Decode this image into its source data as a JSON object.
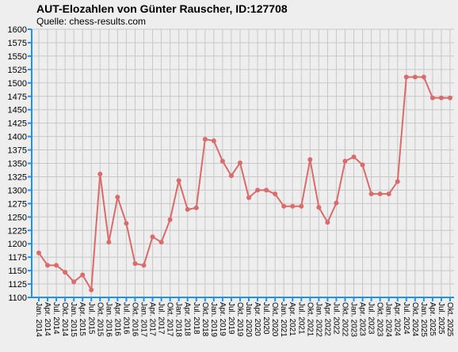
{
  "chart_data": {
    "type": "line",
    "title": "AUT-Elozahlen von Günter Rauscher, ID:127708",
    "subtitle": "Quelle: chess-results.com",
    "categories": [
      "Jan. 2014",
      "Apr. 2014",
      "Jul. 2014",
      "Okt. 2014",
      "Jan. 2015",
      "Apr. 2015",
      "Jul. 2015",
      "Okt. 2015",
      "Jan. 2016",
      "Apr. 2016",
      "Jul. 2016",
      "Okt. 2016",
      "Jan. 2017",
      "Apr. 2017",
      "Jul. 2017",
      "Okt. 2017",
      "Jan. 2018",
      "Apr. 2018",
      "Jul. 2018",
      "Okt. 2018",
      "Jan. 2019",
      "Apr. 2019",
      "Jul. 2019",
      "Okt. 2019",
      "Jan. 2020",
      "Apr. 2020",
      "Jul. 2020",
      "Okt. 2020",
      "Jan. 2021",
      "Apr. 2021",
      "Jul. 2021",
      "Okt. 2021",
      "Jan. 2022",
      "Apr. 2022",
      "Jul. 2022",
      "Okt. 2022",
      "Jan. 2023",
      "Apr. 2023",
      "Jul. 2023",
      "Okt. 2023",
      "Jan. 2024",
      "Apr. 2024",
      "Jul. 2024",
      "Okt. 2024",
      "Jan. 2025",
      "Apr. 2025",
      "Jul. 2025",
      "Okt. 2025"
    ],
    "values": [
      1183,
      1160,
      1160,
      1147,
      1129,
      1142,
      1114,
      1330,
      1203,
      1287,
      1238,
      1163,
      1160,
      1213,
      1203,
      1245,
      1318,
      1264,
      1267,
      1395,
      1392,
      1354,
      1327,
      1351,
      1286,
      1300,
      1300,
      1293,
      1270,
      1270,
      1270,
      1357,
      1268,
      1240,
      1276,
      1354,
      1362,
      1347,
      1293,
      1293,
      1293,
      1316,
      1511,
      1511,
      1511,
      1472,
      1472,
      1472
    ],
    "color": "#d96b6b",
    "ylim": [
      1100,
      1600
    ],
    "yticks": [
      1100,
      1125,
      1150,
      1175,
      1200,
      1225,
      1250,
      1275,
      1300,
      1325,
      1350,
      1375,
      1400,
      1425,
      1450,
      1475,
      1500,
      1525,
      1550,
      1575,
      1600
    ],
    "grid": true
  }
}
